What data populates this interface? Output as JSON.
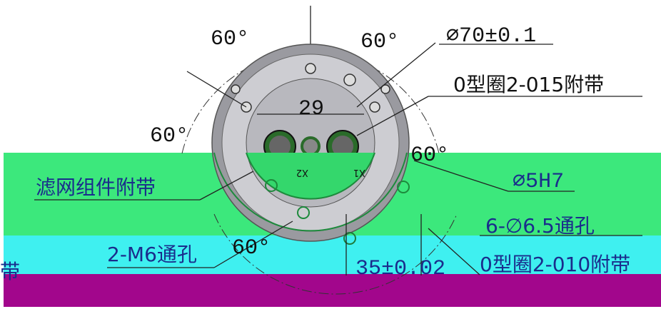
{
  "drawing": {
    "angle_labels": [
      "60°",
      "60°",
      "60°",
      "60°",
      "60°"
    ],
    "diameter": "∅70±0.1",
    "oring_large": "0型圈2-015附带",
    "spacing": "29",
    "filter": "滤网组件附带",
    "pin_hole": "∅5H7",
    "through_holes": "6-∅6.5通孔",
    "thread_holes": "2-M6通孔",
    "center_distance": "35±0.02",
    "oring_small": "0型圈2-010附带",
    "connector_left": "X2",
    "connector_right": "X1",
    "fragment": "带"
  }
}
